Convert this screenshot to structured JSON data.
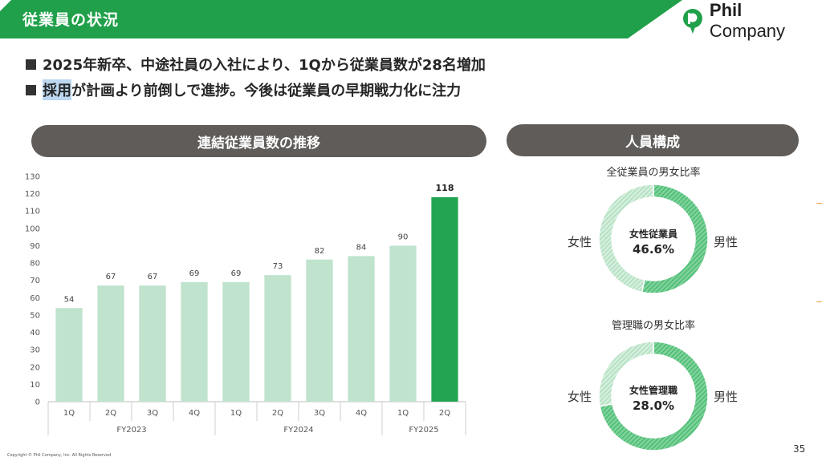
{
  "header": {
    "title": "従業員の状況"
  },
  "logo": {
    "name_bold": "Phil",
    "name_rest": " Company"
  },
  "bullets": [
    {
      "text": "2025年新卒、中途社員の入社により、1Qから従業員数が28名増加",
      "highlight": ""
    },
    {
      "text": "が計画より前倒しで進捗。今後は従業員の早期戦力化に注力",
      "highlight": "採用"
    }
  ],
  "left_panel": {
    "title": "連結従業員数の推移"
  },
  "right_panel": {
    "title": "人員構成"
  },
  "chart_data": {
    "type": "bar",
    "categories": [
      "1Q",
      "2Q",
      "3Q",
      "4Q",
      "1Q",
      "2Q",
      "3Q",
      "4Q",
      "1Q",
      "2Q"
    ],
    "groups": [
      {
        "label": "FY2023",
        "start": 0,
        "end": 3
      },
      {
        "label": "FY2024",
        "start": 4,
        "end": 7
      },
      {
        "label": "FY2025",
        "start": 8,
        "end": 9
      }
    ],
    "values": [
      54,
      67,
      67,
      69,
      69,
      73,
      82,
      84,
      90,
      118
    ],
    "highlight_index": 9,
    "ylim": [
      0,
      130
    ],
    "yticks": [
      0,
      10,
      20,
      30,
      40,
      50,
      60,
      70,
      80,
      90,
      100,
      110,
      120,
      130
    ],
    "colors": {
      "bar": "#bfe3cd",
      "highlight": "#22a552"
    }
  },
  "donuts": [
    {
      "title": "全従業員の男女比率",
      "left_label": "女性",
      "right_label": "男性",
      "center_line1": "女性従業員",
      "center_line2": "46.6%",
      "female_pct": 46.6
    },
    {
      "title": "管理職の男女比率",
      "left_label": "女性",
      "right_label": "男性",
      "center_line1": "女性管理職",
      "center_line2": "28.0%",
      "female_pct": 28.0
    }
  ],
  "donut_colors": {
    "male": "#3fb76a",
    "female": "#a7dcb9"
  },
  "footer": {
    "copyright": "Copyright © Phil Company, Inc.  All Rights Reserved",
    "page": "35"
  }
}
